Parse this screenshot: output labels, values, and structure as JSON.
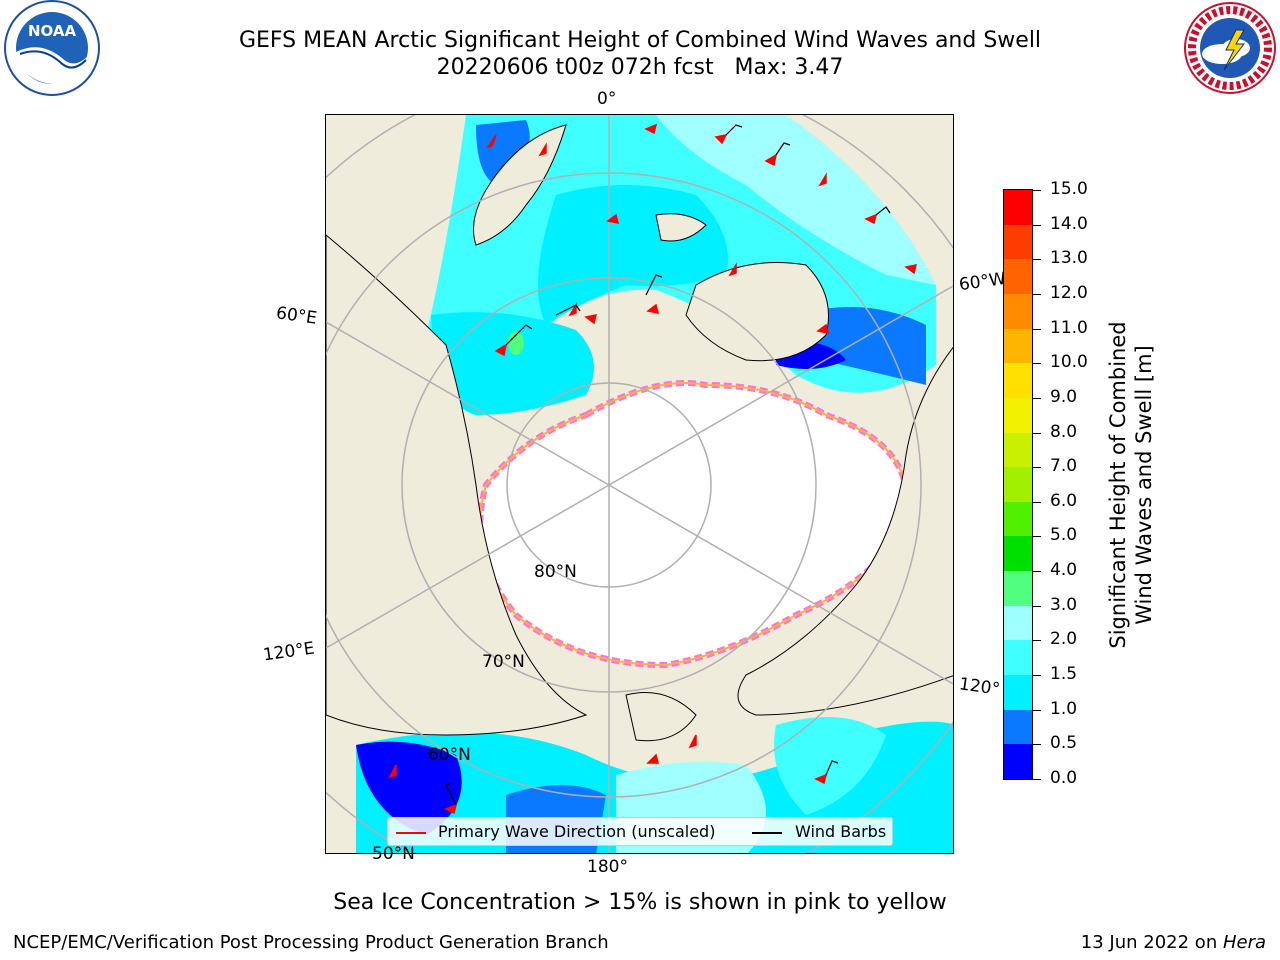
{
  "title": {
    "line1": "GEFS MEAN Arctic Significant Height of Combined Wind Waves and Swell",
    "line2": "20220606 t00z 072h fcst   Max: 3.47"
  },
  "logos": {
    "left": {
      "text": "NOAA",
      "ring_text": "NATIONAL OCEANIC AND ATMOSPHERIC ADMINISTRATION · U.S. DEPARTMENT OF COMMERCE"
    },
    "right": {
      "ring_text": "NATIONAL WEATHER SERVICE"
    }
  },
  "map": {
    "longitude_labels": {
      "top": "0°",
      "left_upper": "60°E",
      "left_lower": "120°E",
      "bottom": "180°",
      "right_lower": "120°",
      "right_upper": "60°W"
    },
    "latitude_labels": {
      "lat80": "80°N",
      "lat70": "70°N",
      "lat60": "60°N",
      "lat50": "50°N"
    },
    "colors": {
      "land": "#efecdc",
      "ice_free_open": "#ffffff",
      "grid": "#b0b0b0"
    }
  },
  "legend": {
    "primary_wave": "Primary Wave Direction (unscaled)",
    "wind_barbs": "Wind Barbs",
    "primary_color": "#ff0000",
    "barb_color": "#000000"
  },
  "colorbar": {
    "label_line1": "Significant Height of Combined",
    "label_line2": "Wind Waves and Swell [m]",
    "ticks": [
      "0.0",
      "0.5",
      "1.0",
      "1.5",
      "2.0",
      "3.0",
      "4.0",
      "5.0",
      "6.0",
      "7.0",
      "8.0",
      "9.0",
      "10.0",
      "11.0",
      "12.0",
      "13.0",
      "14.0",
      "15.0"
    ],
    "colors": [
      "#0000ff",
      "#0a78ff",
      "#00f0ff",
      "#40ffff",
      "#a0ffff",
      "#50ff80",
      "#00e000",
      "#50f000",
      "#a0f000",
      "#c8f000",
      "#f0f000",
      "#ffe000",
      "#ffb400",
      "#ff8c00",
      "#ff6400",
      "#ff3c00",
      "#ff0000"
    ]
  },
  "caption": "Sea Ice Concentration > 15% is shown in pink to yellow",
  "footer": {
    "left": "NCEP/EMC/Verification Post Processing Product Generation Branch",
    "right_prefix": "13 Jun 2022 on ",
    "right_machine": "Hera"
  }
}
